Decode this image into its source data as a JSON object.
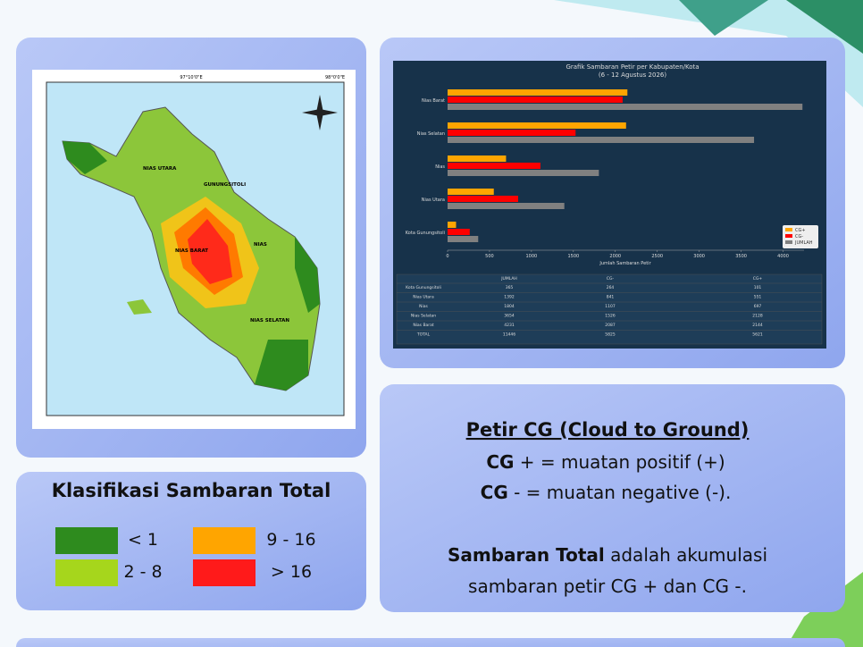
{
  "map_panel": {
    "coord_top": [
      "97°10'0\"E",
      "98°0'0\"E"
    ],
    "regions": [
      "NIAS UTARA",
      "GUNUNGSITOLI",
      "NIAS BARAT",
      "NIAS",
      "NIAS SELATAN"
    ]
  },
  "chart_data": {
    "type": "hbar",
    "title": "Grafik Sambaran Petir per Kabupaten/Kota",
    "subtitle": "(6 - 12 Agustus 2026)",
    "x_label": "Jumlah Sambaran Petir",
    "categories": [
      "Nias Barat",
      "Nias Selatan",
      "Nias",
      "Nias Utara",
      "Kota Gunungsitoli"
    ],
    "series": [
      {
        "name": "CG+",
        "color": "#ffa500",
        "values": [
          2144,
          2128,
          697,
          551,
          101
        ]
      },
      {
        "name": "CG-",
        "color": "#ff0000",
        "values": [
          2087,
          1526,
          1107,
          841,
          264
        ]
      },
      {
        "name": "JUMLAH",
        "color": "#808080",
        "values": [
          4231,
          3654,
          1804,
          1392,
          365
        ]
      }
    ],
    "xlim": [
      0,
      4250
    ],
    "xticks": [
      0,
      500,
      1000,
      1500,
      2000,
      2500,
      3000,
      3500,
      4000
    ],
    "legend": "lower right"
  },
  "table": {
    "columns": [
      "JUMLAH",
      "CG-",
      "CG+"
    ],
    "rows": [
      [
        "Kota Gunungsitoli",
        "365",
        "264",
        "101"
      ],
      [
        "Nias Utara",
        "1392",
        "841",
        "551"
      ],
      [
        "Nias",
        "1804",
        "1107",
        "697"
      ],
      [
        "Nias Selatan",
        "3654",
        "1526",
        "2128"
      ],
      [
        "Nias Barat",
        "4231",
        "2087",
        "2144"
      ],
      [
        "TOTAL",
        "11446",
        "5825",
        "5621"
      ]
    ]
  },
  "legend_panel": {
    "title": "Klasifikasi Sambaran Total",
    "items": [
      {
        "label": "< 1",
        "color": "#2e8b1e"
      },
      {
        "label": "2 - 8",
        "color": "#a6d61c"
      },
      {
        "label": "9 - 16",
        "color": "#ffa500"
      },
      {
        "label": "> 16",
        "color": "#ff1a1a"
      }
    ]
  },
  "info_panel": {
    "heading": "Petir CG (Cloud to Ground)",
    "cg_plus": {
      "term": "CG",
      "text": "+ = muatan positif (+)"
    },
    "cg_minus": {
      "term": "CG",
      "text": "- = muatan negative (-)."
    },
    "total": {
      "term": "Sambaran Total",
      "text": "adalah akumulasi",
      "text2": "sambaran petir CG + dan CG -."
    }
  }
}
